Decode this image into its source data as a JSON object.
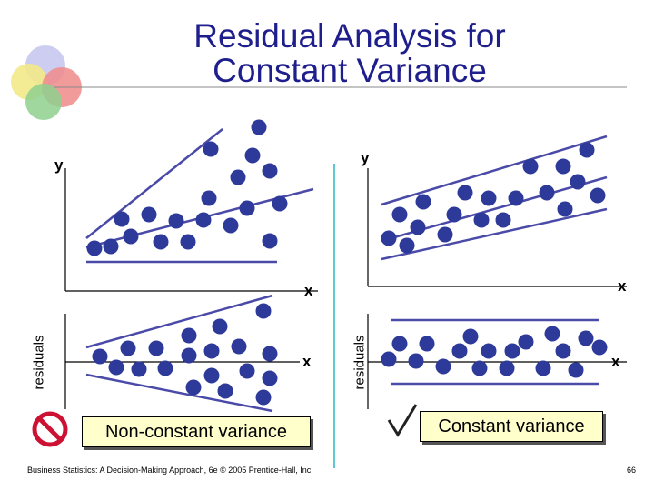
{
  "title": {
    "line1": "Residual Analysis for",
    "line2": "Constant Variance"
  },
  "left_panel": {
    "y_label": "y",
    "x_label_top": "x",
    "x_label_bottom": "x",
    "residuals_label": "residuals",
    "caption": "Non-constant variance"
  },
  "right_panel": {
    "y_label": "y",
    "x_label_top": "x",
    "x_label_bottom": "x",
    "residuals_label": "residuals",
    "caption": "Constant variance"
  },
  "footer": {
    "source": "Business Statistics: A Decision-Making Approach, 6e © 2005 Prentice-Hall, Inc.",
    "page": "66"
  },
  "icons": {
    "decor": "overlapping-circles-icon",
    "bad": "prohibition-icon",
    "good": "checkmark-icon"
  },
  "colors": {
    "title": "#1e1e8c",
    "dots": "#2d3a99",
    "lines": "#4a4aa8",
    "caption_bg": "#ffffcc",
    "prohibit": "#cc1133"
  }
}
